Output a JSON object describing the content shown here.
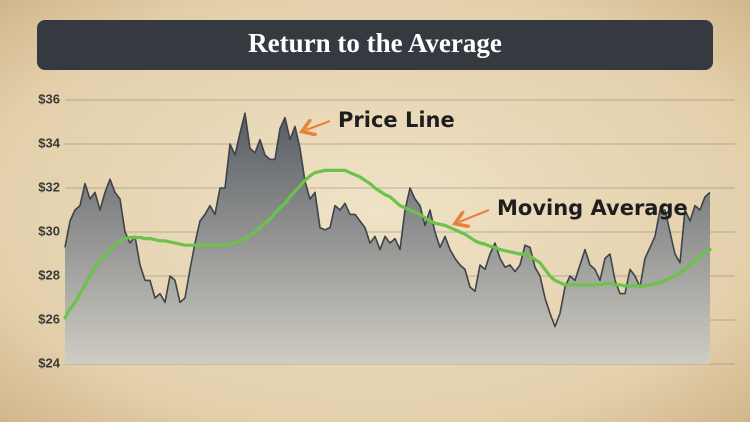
{
  "chart_data": {
    "type": "line",
    "title": "Return to the Average",
    "categories": [
      null,
      null,
      null,
      null,
      null,
      null,
      null,
      null,
      null,
      null,
      null,
      null,
      null,
      null,
      null,
      null,
      null,
      null,
      null,
      null,
      null,
      null,
      null,
      null,
      null,
      null,
      null,
      null,
      null,
      null,
      null,
      null,
      null,
      null,
      null,
      null,
      null,
      null,
      null,
      null,
      null,
      null,
      null,
      null,
      null,
      null,
      null,
      null,
      null,
      null,
      null,
      null,
      null,
      null,
      null,
      null,
      null,
      null,
      null,
      null,
      null,
      null,
      null,
      null,
      null,
      null,
      null,
      null,
      null,
      null,
      null,
      null,
      null,
      null,
      null,
      null,
      null,
      null,
      null,
      null,
      null,
      null,
      null,
      null,
      null,
      null,
      null,
      null,
      null,
      null,
      null,
      null,
      null,
      null,
      null,
      null,
      null,
      null,
      null,
      null,
      null,
      null,
      null,
      null,
      null,
      null,
      null,
      null,
      null,
      null,
      null,
      null,
      null,
      null,
      null,
      null,
      null,
      null,
      null,
      null,
      null,
      null,
      null,
      null,
      null,
      null,
      null,
      null,
      null,
      null
    ],
    "series": [
      {
        "name": "Price Line",
        "color": "#3e434a",
        "values": [
          29.3,
          30.5,
          31,
          31.2,
          32.2,
          31.5,
          31.8,
          31,
          31.8,
          32.4,
          31.8,
          31.5,
          30,
          29.5,
          29.8,
          28.5,
          27.8,
          27.8,
          27,
          27.2,
          26.8,
          28,
          27.8,
          26.8,
          27,
          28.3,
          29.5,
          30.5,
          30.8,
          31.2,
          30.8,
          32,
          32,
          34,
          33.5,
          34.5,
          35.4,
          33.8,
          33.6,
          34.2,
          33.5,
          33.3,
          33.3,
          34.7,
          35.2,
          34.2,
          34.8,
          33.8,
          32.3,
          31.5,
          31.8,
          30.2,
          30.1,
          30.2,
          31.2,
          31,
          31.3,
          30.8,
          30.8,
          30.5,
          30.2,
          29.5,
          29.8,
          29.2,
          29.8,
          29.5,
          29.7,
          29.2,
          31,
          32,
          31.5,
          31.2,
          30.3,
          31,
          30,
          29.3,
          29.8,
          29.2,
          28.8,
          28.5,
          28.3,
          27.5,
          27.3,
          28.5,
          28.3,
          29,
          29.5,
          28.8,
          28.4,
          28.5,
          28.2,
          28.5,
          29.4,
          29.3,
          28.4,
          28,
          27,
          26.3,
          25.7,
          26.3,
          27.5,
          28,
          27.8,
          28.5,
          29.2,
          28.5,
          28.3,
          27.8,
          28.8,
          29,
          27.8,
          27.2,
          27.2,
          28.3,
          28,
          27.5,
          28.8,
          29.3,
          29.8,
          31,
          31,
          30,
          29,
          28.6,
          31,
          30.5,
          31.2,
          31,
          31.6,
          31.8
        ]
      },
      {
        "name": "Moving Average",
        "color": "#6cc24a",
        "values": [
          26.1,
          26.5,
          26.8,
          27.2,
          27.6,
          28,
          28.4,
          28.7,
          28.9,
          29.2,
          29.4,
          29.6,
          29.7,
          29.75,
          29.75,
          29.75,
          29.7,
          29.7,
          29.65,
          29.6,
          29.6,
          29.55,
          29.5,
          29.45,
          29.4,
          29.4,
          29.4,
          29.4,
          29.4,
          29.4,
          29.4,
          29.4,
          29.4,
          29.45,
          29.5,
          29.6,
          29.7,
          29.85,
          30,
          30.2,
          30.4,
          30.6,
          30.85,
          31.1,
          31.3,
          31.6,
          31.85,
          32.1,
          32.35,
          32.55,
          32.7,
          32.75,
          32.8,
          32.8,
          32.8,
          32.8,
          32.8,
          32.7,
          32.6,
          32.5,
          32.35,
          32.2,
          32,
          31.85,
          31.7,
          31.6,
          31.4,
          31.2,
          31.1,
          31,
          30.9,
          30.8,
          30.65,
          30.5,
          30.4,
          30.35,
          30.3,
          30.2,
          30.1,
          30,
          29.9,
          29.75,
          29.6,
          29.5,
          29.45,
          29.35,
          29.3,
          29.2,
          29.15,
          29.1,
          29.05,
          29,
          29,
          28.9,
          28.75,
          28.6,
          28.3,
          28,
          27.8,
          27.7,
          27.6,
          27.6,
          27.6,
          27.6,
          27.6,
          27.6,
          27.6,
          27.6,
          27.65,
          27.65,
          27.6,
          27.6,
          27.55,
          27.55,
          27.55,
          27.55,
          27.55,
          27.6,
          27.65,
          27.7,
          27.8,
          27.9,
          28,
          28.15,
          28.3,
          28.5,
          28.7,
          28.9,
          29.1,
          29.2
        ]
      }
    ],
    "ylim": [
      24,
      36
    ],
    "yticks": [
      {
        "value": 24,
        "label": "$24"
      },
      {
        "value": 26,
        "label": "$26"
      },
      {
        "value": 28,
        "label": "$28"
      },
      {
        "value": 30,
        "label": "$30"
      },
      {
        "value": 32,
        "label": "$32"
      },
      {
        "value": 34,
        "label": "$34"
      },
      {
        "value": 36,
        "label": "$36"
      }
    ],
    "grid": true
  }
}
